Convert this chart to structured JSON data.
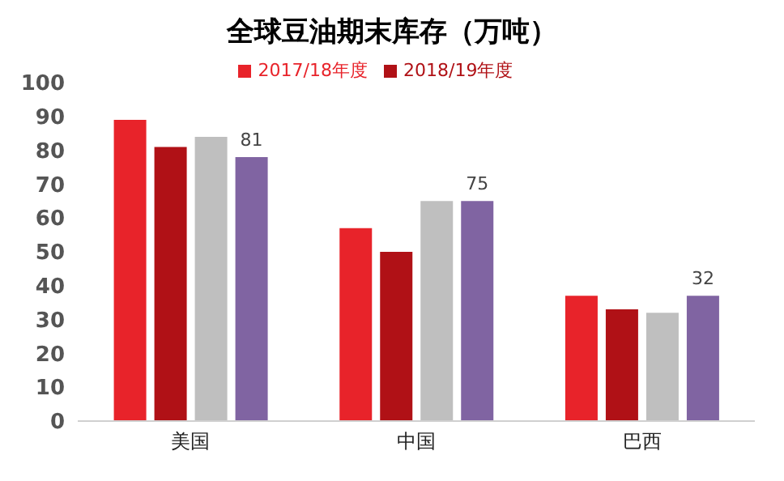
{
  "chart_data": {
    "type": "bar",
    "title": "全球豆油期末库存（万吨）",
    "categories": [
      "美国",
      "中国",
      "巴西"
    ],
    "series": [
      {
        "name": "2017/18年度",
        "color": "#e8232a",
        "values": [
          89,
          57,
          37
        ]
      },
      {
        "name": "2018/19年度",
        "color": "#b01116",
        "values": [
          81,
          50,
          33
        ]
      },
      {
        "color": "#bfbfbf",
        "values": [
          84,
          65,
          32
        ]
      },
      {
        "color": "#8064a2",
        "values": [
          78,
          65,
          37
        ]
      }
    ],
    "annotations": [
      "81",
      "75",
      "32"
    ],
    "ylim": [
      0,
      100
    ],
    "yticks": [
      0,
      10,
      20,
      30,
      40,
      50,
      60,
      70,
      80,
      90,
      100
    ],
    "grid": false,
    "legend": "top"
  }
}
